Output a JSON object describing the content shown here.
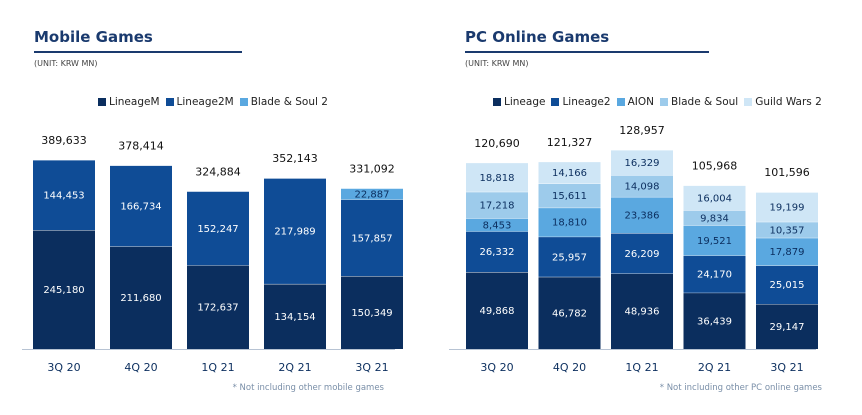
{
  "mobile": {
    "title": "Mobile Games",
    "unit": "(UNIT: KRW MN)",
    "note": "* Not including other mobile games",
    "legend": [
      {
        "label": "LineageM",
        "color": "#0b2e5e"
      },
      {
        "label": "Lineage2M",
        "color": "#0f4c96"
      },
      {
        "label": "Blade & Soul 2",
        "color": "#5aa8e0"
      }
    ]
  },
  "pc": {
    "title": "PC Online Games",
    "unit": "(UNIT: KRW MN)",
    "note": "* Not including other PC online games",
    "legend": [
      {
        "label": "Lineage",
        "color": "#0b2e5e"
      },
      {
        "label": "Lineage2",
        "color": "#0f4c96"
      },
      {
        "label": "AION",
        "color": "#5aa8e0"
      },
      {
        "label": "Blade & Soul",
        "color": "#9dcbeb"
      },
      {
        "label": "Guild Wars 2",
        "color": "#cfe6f6"
      }
    ]
  },
  "chart_data": [
    {
      "type": "bar",
      "stacked": true,
      "title": "Mobile Games",
      "categories": [
        "3Q 20",
        "4Q 20",
        "1Q 21",
        "2Q 21",
        "3Q 21"
      ],
      "series": [
        {
          "name": "LineageM",
          "color": "#0b2e5e",
          "values": [
            245180,
            211680,
            172637,
            134154,
            150349
          ],
          "labels": [
            "245,180",
            "211,680",
            "172,637",
            "134,154",
            "150,349"
          ]
        },
        {
          "name": "Lineage2M",
          "color": "#0f4c96",
          "values": [
            144453,
            166734,
            152247,
            217989,
            157857
          ],
          "labels": [
            "144,453",
            "166,734",
            "152,247",
            "217,989",
            "157,857"
          ]
        },
        {
          "name": "Blade & Soul 2",
          "color": "#5aa8e0",
          "values": [
            0,
            0,
            0,
            0,
            22887
          ],
          "labels": [
            "",
            "",
            "",
            "",
            "22,887"
          ]
        }
      ],
      "totals": [
        389633,
        378414,
        324884,
        352143,
        331092
      ],
      "total_labels": [
        "389,633",
        "378,414",
        "324,884",
        "352,143",
        "331,092"
      ]
    },
    {
      "type": "bar",
      "stacked": true,
      "title": "PC Online Games",
      "categories": [
        "3Q 20",
        "4Q 20",
        "1Q 21",
        "2Q 21",
        "3Q 21"
      ],
      "series": [
        {
          "name": "Lineage",
          "color": "#0b2e5e",
          "values": [
            49868,
            46782,
            48936,
            36439,
            29147
          ],
          "labels": [
            "49,868",
            "46,782",
            "48,936",
            "36,439",
            "29,147"
          ]
        },
        {
          "name": "Lineage2",
          "color": "#0f4c96",
          "values": [
            26332,
            25957,
            26209,
            24170,
            25015
          ],
          "labels": [
            "26,332",
            "25,957",
            "26,209",
            "24,170",
            "25,015"
          ]
        },
        {
          "name": "AION",
          "color": "#5aa8e0",
          "values": [
            8453,
            18810,
            23386,
            19521,
            17879
          ],
          "labels": [
            "8,453",
            "18,810",
            "23,386",
            "19,521",
            "17,879"
          ]
        },
        {
          "name": "Blade & Soul",
          "color": "#9dcbeb",
          "values": [
            17218,
            15611,
            14098,
            9834,
            10357
          ],
          "labels": [
            "17,218",
            "15,611",
            "14,098",
            "9,834",
            "10,357"
          ]
        },
        {
          "name": "Guild Wars 2",
          "color": "#cfe6f6",
          "values": [
            18818,
            14166,
            16329,
            16004,
            19199
          ],
          "labels": [
            "18,818",
            "14,166",
            "16,329",
            "16,004",
            "19,199"
          ]
        }
      ],
      "totals": [
        120690,
        121327,
        128957,
        105968,
        101596
      ],
      "total_labels": [
        "120,690",
        "121,327",
        "128,957",
        "105,968",
        "101,596"
      ]
    }
  ]
}
